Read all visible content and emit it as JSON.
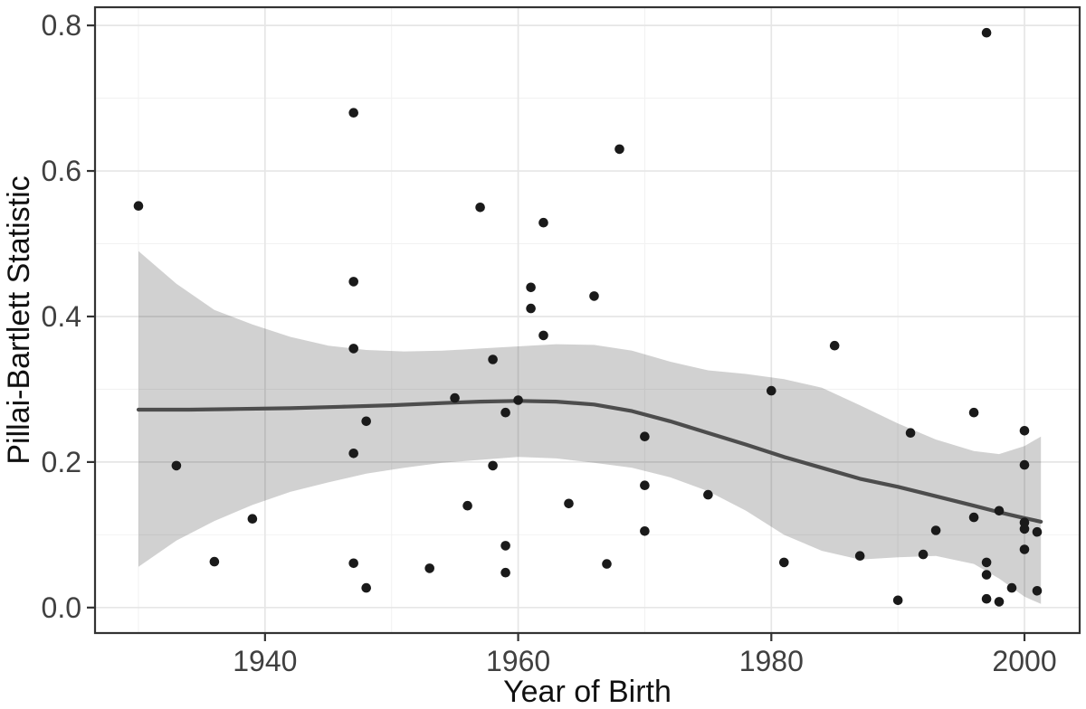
{
  "chart_data": {
    "type": "scatter",
    "title": "",
    "xlabel": "Year of Birth",
    "ylabel": "Pillai-Bartlett Statistic",
    "xlim": [
      1926.57,
      2004.36
    ],
    "ylim": [
      -0.035,
      0.825
    ],
    "grid": true,
    "legend_position": "none",
    "xticks": [
      1940,
      1960,
      1980,
      2000
    ],
    "xticks_minor": [
      1930,
      1950,
      1970,
      1990
    ],
    "yticks": [
      0.0,
      0.2,
      0.4,
      0.6,
      0.8
    ],
    "ytick_labels": [
      "0.0",
      "0.2",
      "0.4",
      "0.6",
      "0.8"
    ],
    "yticks_minor": [
      0.1,
      0.3,
      0.5,
      0.7
    ],
    "points": [
      [
        1930,
        0.552
      ],
      [
        1933,
        0.195
      ],
      [
        1936,
        0.063
      ],
      [
        1939,
        0.122
      ],
      [
        1947,
        0.68
      ],
      [
        1947,
        0.448
      ],
      [
        1947,
        0.356
      ],
      [
        1947,
        0.212
      ],
      [
        1947,
        0.061
      ],
      [
        1948,
        0.256
      ],
      [
        1948,
        0.027
      ],
      [
        1953,
        0.054
      ],
      [
        1955,
        0.288
      ],
      [
        1956,
        0.14
      ],
      [
        1957,
        0.55
      ],
      [
        1958,
        0.341
      ],
      [
        1958,
        0.195
      ],
      [
        1959,
        0.268
      ],
      [
        1959,
        0.085
      ],
      [
        1959,
        0.048
      ],
      [
        1960,
        0.285
      ],
      [
        1961,
        0.44
      ],
      [
        1961,
        0.411
      ],
      [
        1962,
        0.529
      ],
      [
        1962,
        0.374
      ],
      [
        1964,
        0.143
      ],
      [
        1966,
        0.428
      ],
      [
        1967,
        0.06
      ],
      [
        1968,
        0.63
      ],
      [
        1970,
        0.235
      ],
      [
        1970,
        0.168
      ],
      [
        1970,
        0.105
      ],
      [
        1975,
        0.155
      ],
      [
        1980,
        0.298
      ],
      [
        1981,
        0.062
      ],
      [
        1985,
        0.36
      ],
      [
        1987,
        0.071
      ],
      [
        1990,
        0.01
      ],
      [
        1991,
        0.24
      ],
      [
        1992,
        0.073
      ],
      [
        1993,
        0.106
      ],
      [
        1996,
        0.268
      ],
      [
        1996,
        0.124
      ],
      [
        1997,
        0.79
      ],
      [
        1997,
        0.062
      ],
      [
        1997,
        0.045
      ],
      [
        1997,
        0.012
      ],
      [
        1998,
        0.133
      ],
      [
        1998,
        0.008
      ],
      [
        1999,
        0.027
      ],
      [
        2000,
        0.243
      ],
      [
        2000,
        0.196
      ],
      [
        2000,
        0.117
      ],
      [
        2000,
        0.108
      ],
      [
        2000,
        0.08
      ],
      [
        2001,
        0.104
      ],
      [
        2001,
        0.023
      ]
    ],
    "smooth_line": [
      [
        1930,
        0.272
      ],
      [
        1934,
        0.272
      ],
      [
        1938,
        0.273
      ],
      [
        1942,
        0.274
      ],
      [
        1946,
        0.276
      ],
      [
        1950,
        0.278
      ],
      [
        1954,
        0.281
      ],
      [
        1957,
        0.283
      ],
      [
        1960,
        0.284
      ],
      [
        1963,
        0.283
      ],
      [
        1966,
        0.279
      ],
      [
        1969,
        0.27
      ],
      [
        1972,
        0.256
      ],
      [
        1975,
        0.24
      ],
      [
        1978,
        0.224
      ],
      [
        1981,
        0.207
      ],
      [
        1984,
        0.192
      ],
      [
        1987,
        0.177
      ],
      [
        1990,
        0.166
      ],
      [
        1993,
        0.153
      ],
      [
        1996,
        0.14
      ],
      [
        1998,
        0.131
      ],
      [
        2000,
        0.123
      ],
      [
        2001.3,
        0.118
      ]
    ],
    "ribbon_upper": [
      [
        1930,
        0.49
      ],
      [
        1933,
        0.445
      ],
      [
        1936,
        0.409
      ],
      [
        1939,
        0.389
      ],
      [
        1942,
        0.372
      ],
      [
        1945,
        0.36
      ],
      [
        1948,
        0.354
      ],
      [
        1951,
        0.352
      ],
      [
        1954,
        0.353
      ],
      [
        1957,
        0.356
      ],
      [
        1960,
        0.359
      ],
      [
        1963,
        0.362
      ],
      [
        1966,
        0.361
      ],
      [
        1969,
        0.353
      ],
      [
        1972,
        0.338
      ],
      [
        1975,
        0.326
      ],
      [
        1978,
        0.321
      ],
      [
        1981,
        0.314
      ],
      [
        1984,
        0.302
      ],
      [
        1987,
        0.278
      ],
      [
        1990,
        0.253
      ],
      [
        1993,
        0.231
      ],
      [
        1996,
        0.215
      ],
      [
        1998,
        0.211
      ],
      [
        2000,
        0.222
      ],
      [
        2001.3,
        0.235
      ]
    ],
    "ribbon_lower": [
      [
        1930,
        0.056
      ],
      [
        1933,
        0.092
      ],
      [
        1936,
        0.119
      ],
      [
        1939,
        0.141
      ],
      [
        1942,
        0.159
      ],
      [
        1945,
        0.172
      ],
      [
        1948,
        0.184
      ],
      [
        1951,
        0.192
      ],
      [
        1954,
        0.199
      ],
      [
        1957,
        0.203
      ],
      [
        1960,
        0.207
      ],
      [
        1963,
        0.205
      ],
      [
        1966,
        0.199
      ],
      [
        1969,
        0.192
      ],
      [
        1972,
        0.179
      ],
      [
        1975,
        0.16
      ],
      [
        1978,
        0.133
      ],
      [
        1981,
        0.1
      ],
      [
        1984,
        0.078
      ],
      [
        1987,
        0.066
      ],
      [
        1990,
        0.069
      ],
      [
        1993,
        0.071
      ],
      [
        1996,
        0.06
      ],
      [
        1998,
        0.04
      ],
      [
        2000,
        0.015
      ],
      [
        2001.3,
        0.005
      ]
    ],
    "colors": {
      "point": "#1a1a1a",
      "smooth_line": "#4d4d4d",
      "ribbon": "rgba(0,0,0,0.18)",
      "grid_major": "#e6e6e6",
      "grid_minor": "#f2f2f2",
      "panel_border": "#333333",
      "tick_mark": "#333333",
      "tick_label": "#404040",
      "axis_title": "#111111",
      "background": "#ffffff"
    }
  }
}
